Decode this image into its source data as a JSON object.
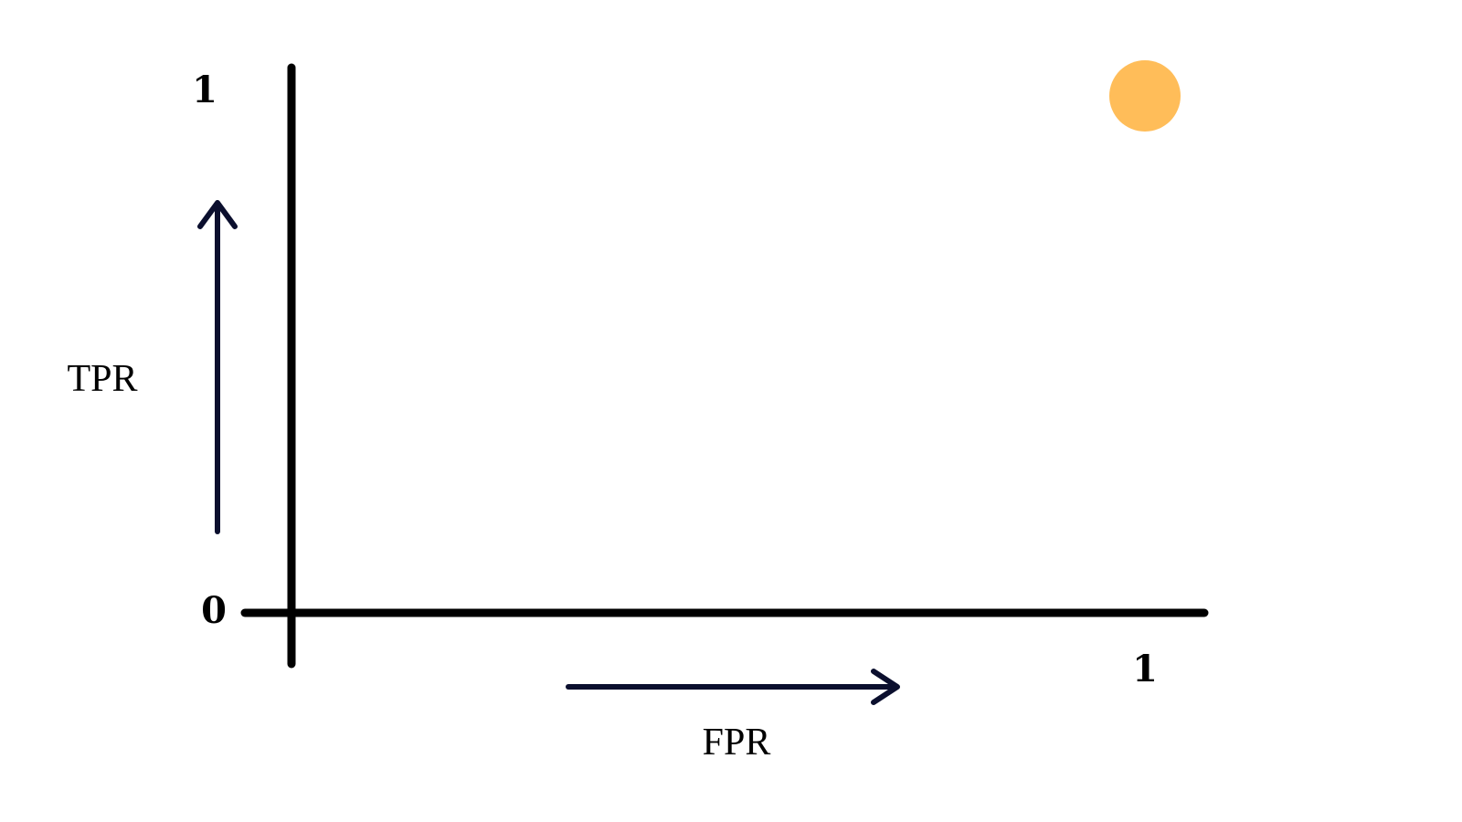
{
  "chart_data": {
    "type": "scatter",
    "xlabel": "FPR",
    "ylabel": "TPR",
    "xlim": [
      0,
      1
    ],
    "ylim": [
      0,
      1
    ],
    "x_ticks": [
      "1"
    ],
    "y_ticks": [
      "0",
      "1"
    ],
    "grid": false,
    "points": [
      {
        "x": 1,
        "y": 1
      }
    ],
    "colors": {
      "axis": "#000000",
      "arrow": "#0b0f2e",
      "point": "#ffbd59"
    }
  }
}
